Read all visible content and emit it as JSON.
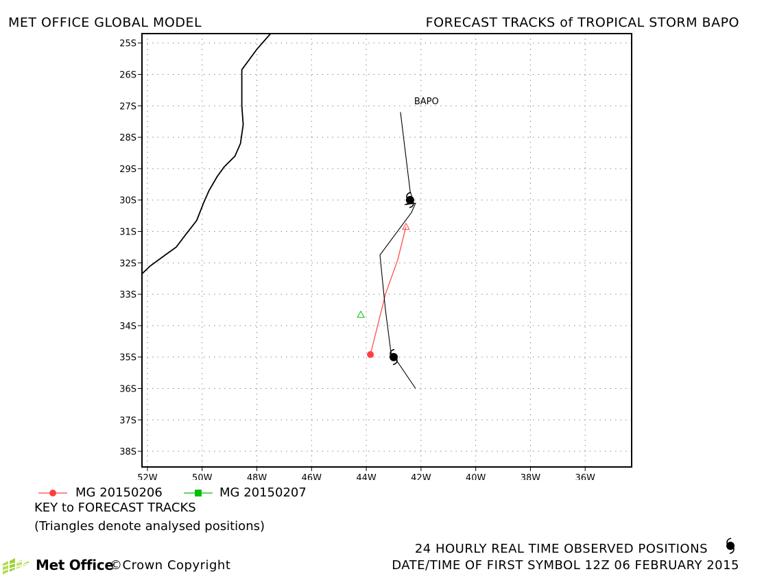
{
  "header": {
    "left": "MET OFFICE GLOBAL MODEL",
    "right": "FORECAST TRACKS of TROPICAL STORM BAPO"
  },
  "chart_data": {
    "type": "map",
    "xlim": [
      -52.2,
      -34.3
    ],
    "ylim": [
      -38.5,
      -24.7
    ],
    "lat_ticks": [
      -25,
      -26,
      -27,
      -28,
      -29,
      -30,
      -31,
      -32,
      -33,
      -34,
      -35,
      -36,
      -37,
      -38
    ],
    "lat_labels": [
      "25S",
      "26S",
      "27S",
      "28S",
      "29S",
      "30S",
      "31S",
      "32S",
      "33S",
      "34S",
      "35S",
      "36S",
      "37S",
      "38S"
    ],
    "lon_ticks": [
      -52,
      -50,
      -48,
      -46,
      -44,
      -42,
      -40,
      -38,
      -36
    ],
    "lon_labels": [
      "52W",
      "50W",
      "48W",
      "46W",
      "44W",
      "42W",
      "40W",
      "38W",
      "36W"
    ],
    "grid": true,
    "storm_label": {
      "text": "BAPO",
      "lon": -42.25,
      "lat": -26.95
    },
    "coastline": [
      [
        -47.5,
        -24.7
      ],
      [
        -48.0,
        -25.2
      ],
      [
        -48.55,
        -25.85
      ],
      [
        -48.55,
        -26.3
      ],
      [
        -48.55,
        -27.0
      ],
      [
        -48.5,
        -27.6
      ],
      [
        -48.6,
        -28.2
      ],
      [
        -48.8,
        -28.6
      ],
      [
        -49.2,
        -28.95
      ],
      [
        -49.45,
        -29.25
      ],
      [
        -49.75,
        -29.7
      ],
      [
        -49.95,
        -30.1
      ],
      [
        -50.2,
        -30.65
      ],
      [
        -50.6,
        -31.1
      ],
      [
        -50.95,
        -31.5
      ],
      [
        -51.35,
        -31.75
      ],
      [
        -51.9,
        -32.1
      ],
      [
        -52.2,
        -32.35
      ]
    ],
    "observed_track": [
      [
        -42.75,
        -27.2
      ],
      [
        -42.4,
        -29.7
      ],
      [
        -42.3,
        -30.0
      ],
      [
        -42.45,
        -30.1
      ],
      [
        -42.6,
        -30.15
      ],
      [
        -42.2,
        -30.1
      ],
      [
        -42.35,
        -30.4
      ],
      [
        -43.5,
        -31.75
      ],
      [
        -43.3,
        -33.5
      ],
      [
        -43.1,
        -34.85
      ],
      [
        -42.9,
        -35.1
      ],
      [
        -42.2,
        -36.0
      ]
    ],
    "observed_positions": [
      {
        "lon": -42.4,
        "lat": -30.0
      },
      {
        "lon": -43.0,
        "lat": -35.0
      }
    ],
    "series": [
      {
        "name": "MG 20150206",
        "color": "#ff4040",
        "marker": "circle",
        "track": [
          [
            -43.85,
            -34.92
          ],
          [
            -43.3,
            -33.0
          ],
          [
            -42.85,
            -31.9
          ],
          [
            -42.55,
            -30.85
          ]
        ],
        "forecast_points": [
          [
            -43.85,
            -34.92
          ]
        ],
        "analysed_positions": [
          [
            -42.55,
            -30.85
          ]
        ]
      },
      {
        "name": "MG 20150207",
        "color": "#00c000",
        "marker": "square",
        "track": [],
        "forecast_points": [],
        "analysed_positions": [
          [
            -44.2,
            -33.65
          ]
        ]
      }
    ]
  },
  "key": {
    "title": "KEY to FORECAST TRACKS",
    "note": "(Triangles denote analysed positions)"
  },
  "footer": {
    "observed_label": "24 HOURLY REAL TIME OBSERVED POSITIONS",
    "brand": "Met Office",
    "copyright": "©Crown Copyright",
    "first_symbol": "DATE/TIME OF FIRST SYMBOL 12Z 06 FEBRUARY 2015"
  },
  "icons": {
    "observed": "tropical-storm-icon",
    "logo": "met-office-logo-icon"
  }
}
